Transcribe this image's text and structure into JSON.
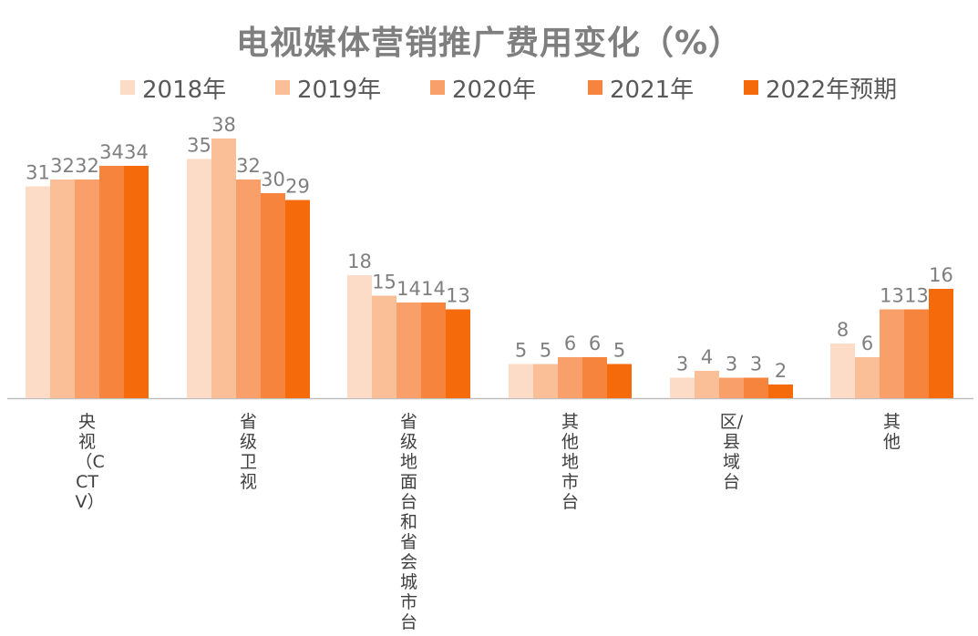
{
  "chart_data": {
    "type": "bar",
    "title": "电视媒体营销推广费用变化（%）",
    "categories": [
      "央视（CCTV）",
      "省级卫视",
      "省级地面台和省会城市台",
      "其他地市台",
      "区/县域台",
      "其他"
    ],
    "series": [
      {
        "name": "2018年",
        "values": [
          31,
          35,
          18,
          5,
          3,
          8
        ],
        "color": "#fcdcc6"
      },
      {
        "name": "2019年",
        "values": [
          32,
          38,
          15,
          5,
          4,
          6
        ],
        "color": "#fbbf98"
      },
      {
        "name": "2020年",
        "values": [
          32,
          32,
          14,
          6,
          3,
          13
        ],
        "color": "#f9a06a"
      },
      {
        "name": "2021年",
        "values": [
          34,
          30,
          14,
          6,
          3,
          13
        ],
        "color": "#f7843c"
      },
      {
        "name": "2022年预期",
        "values": [
          34,
          29,
          13,
          5,
          2,
          16
        ],
        "color": "#f56a0a"
      }
    ],
    "ylim": [
      0,
      40
    ],
    "legend_position": "top",
    "grid": false
  }
}
